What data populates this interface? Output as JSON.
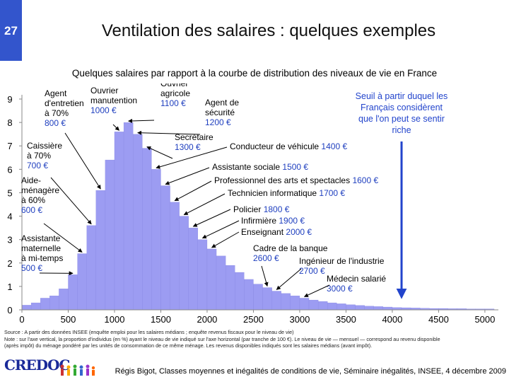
{
  "slide": {
    "number": "27",
    "title": "Ventilation des salaires : quelques exemples",
    "footer": "Régis Bigot, Classes moyennes et inégalités de conditions de vie, Séminaire inégalités, INSEE, 4 décembre 2009",
    "logo_text": "CREDOC",
    "source_lines": [
      "Source : A partir des données INSEE (enquête emploi pour les salaires médians ; enquête revenus fiscaux pour le niveau de vie)",
      "Note : sur l'axe vertical, la proportion d'individus (en %) ayant le niveau de vie indiqué sur l'axe horizontal (par tranche de 100 €). Le niveau de vie — mensuel — correspond au revenu disponible",
      "(après impôt) du ménage pondéré par les unités de consommation de ce même ménage. Les revenus disponibles indiqués sont les salaires médians (avant impôt)."
    ]
  },
  "colors": {
    "bar": "#9c9cf2",
    "bar_edge": "#8484e0",
    "accent_text": "#1f3fbf",
    "threshold": "#2244cc",
    "slide_num_bg": "#3355cc"
  },
  "chart_data": {
    "type": "bar",
    "subtitle": "Quelques salaires par rapport à la courbe de distribution des niveaux de vie en France",
    "bin_width": 100,
    "x_start": [
      0,
      100,
      200,
      300,
      400,
      500,
      600,
      700,
      800,
      900,
      1000,
      1100,
      1200,
      1300,
      1400,
      1500,
      1600,
      1700,
      1800,
      1900,
      2000,
      2100,
      2200,
      2300,
      2400,
      2500,
      2600,
      2700,
      2800,
      2900,
      3000,
      3100,
      3200,
      3300,
      3400,
      3500,
      3600,
      3700,
      3800,
      3900,
      4000,
      4100,
      4200,
      4300,
      4400,
      4500,
      4600,
      4700,
      4800,
      4900,
      5000
    ],
    "values": [
      0.2,
      0.3,
      0.5,
      0.6,
      0.9,
      1.5,
      2.4,
      3.6,
      5.1,
      6.4,
      7.6,
      8.0,
      7.5,
      6.9,
      6.0,
      5.3,
      4.6,
      4.0,
      3.5,
      3.0,
      2.6,
      2.3,
      1.9,
      1.6,
      1.3,
      1.1,
      0.95,
      0.8,
      0.7,
      0.6,
      0.5,
      0.42,
      0.36,
      0.3,
      0.26,
      0.22,
      0.19,
      0.16,
      0.14,
      0.12,
      0.1,
      0.09,
      0.08,
      0.07,
      0.06,
      0.06,
      0.05,
      0.05,
      0.04,
      0.04,
      0.04
    ],
    "xlim": [
      0,
      5100
    ],
    "ylim": [
      0,
      9
    ],
    "x_ticks": [
      0,
      500,
      1000,
      1500,
      2000,
      2500,
      3000,
      3500,
      4000,
      4500,
      5000
    ],
    "y_ticks": [
      0,
      1,
      2,
      3,
      4,
      5,
      6,
      7,
      8,
      9
    ],
    "grid": false,
    "threshold": {
      "x": 4100,
      "label_lines": [
        "Seuil à partir duquel les",
        "Français considèrent",
        "que l'on peut se sentir",
        "riche"
      ]
    },
    "annotations": [
      {
        "lines": [
          "Agent",
          "d'entretien",
          "à 70%"
        ],
        "value": "800 €",
        "x": 800
      },
      {
        "lines": [
          "Ouvrier",
          "manutention"
        ],
        "value": "1000 €",
        "x": 1000
      },
      {
        "lines": [
          "Ouvrier",
          "agricole"
        ],
        "value": "1100 €",
        "x": 1100
      },
      {
        "lines": [
          "Agent de",
          "sécurité"
        ],
        "value": "1200 €",
        "x": 1200
      },
      {
        "lines": [
          "Secrétaire"
        ],
        "value": "1300 €",
        "x": 1300
      },
      {
        "lines": [
          "Caissière",
          "à 70%"
        ],
        "value": "700 €",
        "x": 700
      },
      {
        "lines": [
          "Aide-",
          "ménagère",
          "à 60%"
        ],
        "value": "600 €",
        "x": 600
      },
      {
        "lines": [
          "Assistante",
          "maternelle",
          "à mi-temps"
        ],
        "value": "500 €",
        "x": 500
      },
      {
        "lines": [
          "Conducteur de véhicule"
        ],
        "value": "1400 €",
        "x": 1400
      },
      {
        "lines": [
          "Assistante sociale"
        ],
        "value": "1500 €",
        "x": 1500
      },
      {
        "lines": [
          "Professionnel des arts et spectacles"
        ],
        "value": "1600 €",
        "x": 1600
      },
      {
        "lines": [
          "Technicien informatique"
        ],
        "value": "1700 €",
        "x": 1700
      },
      {
        "lines": [
          "Policier"
        ],
        "value": "1800 €",
        "x": 1800
      },
      {
        "lines": [
          "Infirmière"
        ],
        "value": "1900 €",
        "x": 1900
      },
      {
        "lines": [
          "Enseignant"
        ],
        "value": "2000 €",
        "x": 2000
      },
      {
        "lines": [
          "Cadre de la banque"
        ],
        "value": "2600 €",
        "x": 2600
      },
      {
        "lines": [
          "Ingénieur de l'industrie"
        ],
        "value": "2700 €",
        "x": 2700
      },
      {
        "lines": [
          "Médecin salarié"
        ],
        "value": "3000 €",
        "x": 3000
      }
    ]
  }
}
